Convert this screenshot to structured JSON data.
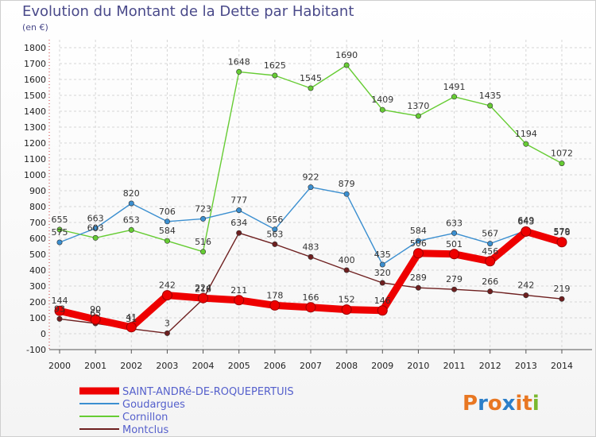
{
  "title": "Evolution du Montant de la Dette par Habitant",
  "unit": "(en €)",
  "logo": "Proxiti",
  "chart_data": {
    "type": "line",
    "x": [
      "2000",
      "2001",
      "2002",
      "2003",
      "2004",
      "2005",
      "2006",
      "2007",
      "2008",
      "2009",
      "2010",
      "2011",
      "2012",
      "2013",
      "2014"
    ],
    "ylim": [
      -100,
      1800
    ],
    "yticks": [
      -100,
      0,
      100,
      200,
      300,
      400,
      500,
      600,
      700,
      800,
      900,
      1000,
      1100,
      1200,
      1300,
      1400,
      1500,
      1600,
      1700,
      1800
    ],
    "grid": true,
    "legend_position": "bottom-left",
    "series": [
      {
        "name": "SAINT-ANDRé-DE-ROQUEPERTUIS",
        "color": "#ee0000",
        "values": [
          144,
          90,
          41,
          242,
          224,
          211,
          178,
          166,
          152,
          146,
          506,
          501,
          456,
          643,
          576
        ]
      },
      {
        "name": "Goudargues",
        "color": "#3b8fd0",
        "values": [
          575,
          663,
          820,
          706,
          723,
          777,
          656,
          922,
          879,
          435,
          584,
          633,
          567,
          649,
          579
        ]
      },
      {
        "name": "Cornillon",
        "color": "#66cc33",
        "values": [
          655,
          603,
          653,
          584,
          516,
          1648,
          1625,
          1545,
          1690,
          1409,
          1370,
          1491,
          1435,
          1194,
          1072
        ]
      },
      {
        "name": "Montclus",
        "color": "#6e1f1f",
        "values": [
          93,
          65,
          31,
          3,
          218,
          634,
          563,
          483,
          400,
          320,
          289,
          279,
          266,
          242,
          219
        ]
      }
    ]
  }
}
